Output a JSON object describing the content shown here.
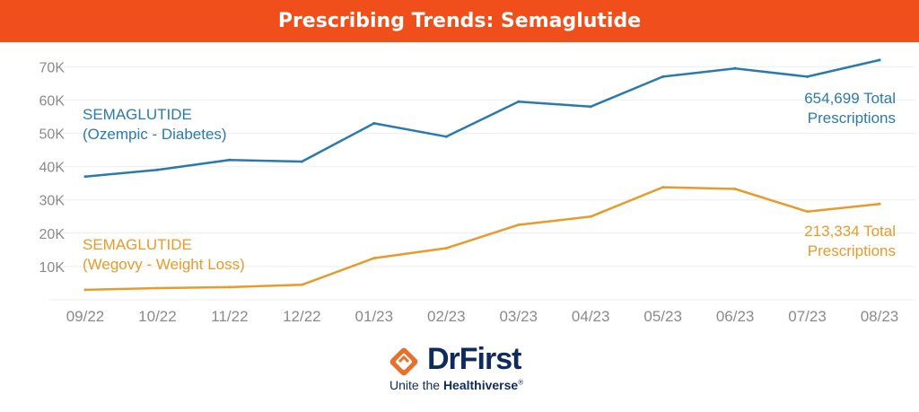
{
  "header": {
    "title": "Prescribing Trends: Semaglutide"
  },
  "chart_data": {
    "type": "line",
    "categories": [
      "09/22",
      "10/22",
      "11/22",
      "12/22",
      "01/23",
      "02/23",
      "03/23",
      "04/23",
      "05/23",
      "06/23",
      "07/23",
      "08/23"
    ],
    "y_ticks": [
      "10K",
      "20K",
      "30K",
      "40K",
      "50K",
      "60K",
      "70K"
    ],
    "ylim": [
      0,
      72000
    ],
    "grid": true,
    "series": [
      {
        "name_line1": "SEMAGLUTIDE",
        "name_line2": "(Ozempic - Diabetes)",
        "total_line1": "654,699 Total",
        "total_line2": "Prescriptions",
        "color": "#2a7aae",
        "values": [
          37000,
          39000,
          42000,
          41500,
          53000,
          49000,
          59500,
          58000,
          67000,
          69500,
          67000,
          72000
        ]
      },
      {
        "name_line1": "SEMAGLUTIDE",
        "name_line2": "(Wegovy - Weight Loss)",
        "total_line1": "213,334 Total",
        "total_line2": "Prescriptions",
        "color": "#e89a2a",
        "values": [
          3000,
          3500,
          3800,
          4500,
          12500,
          15500,
          22500,
          25000,
          33800,
          33300,
          26500,
          28800
        ]
      }
    ]
  },
  "colors": {
    "banner": "#f04e1a",
    "axis_text": "#8a8a8a",
    "logo_blue": "#0f2b5b",
    "logo_orange": "#e8702a"
  },
  "logo": {
    "name": "DrFirst",
    "tagline_start": "Unite the ",
    "tagline_bold": "Healthiverse",
    "tagline_mark": "®"
  }
}
